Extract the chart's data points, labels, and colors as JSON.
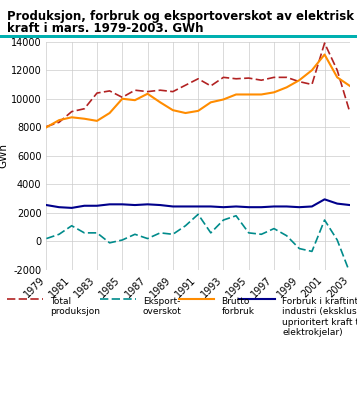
{
  "title_line1": "Produksjon, forbruk og eksportoverskot av elektrisk",
  "title_line2": "kraft i mars. 1979-2003. GWh",
  "ylabel": "GWh",
  "years": [
    1979,
    1980,
    1981,
    1982,
    1983,
    1984,
    1985,
    1986,
    1987,
    1988,
    1989,
    1990,
    1991,
    1992,
    1993,
    1994,
    1995,
    1996,
    1997,
    1998,
    1999,
    2000,
    2001,
    2002,
    2003
  ],
  "total_produksjon": [
    8050,
    8350,
    9100,
    9300,
    10400,
    10550,
    10100,
    10600,
    10500,
    10600,
    10500,
    10950,
    11400,
    10900,
    11500,
    11400,
    11450,
    11300,
    11500,
    11500,
    11200,
    11000,
    13900,
    12000,
    9050
  ],
  "eksport_overskot": [
    200,
    500,
    1100,
    600,
    600,
    -100,
    100,
    500,
    200,
    600,
    500,
    1100,
    1900,
    600,
    1500,
    1800,
    600,
    500,
    900,
    400,
    -500,
    -700,
    1500,
    100,
    -2200
  ],
  "brutto_forbruk": [
    8000,
    8500,
    8700,
    8600,
    8450,
    9000,
    10000,
    9900,
    10350,
    9750,
    9200,
    9000,
    9150,
    9750,
    9950,
    10300,
    10300,
    10300,
    10450,
    10800,
    11300,
    12000,
    13100,
    11500,
    10900
  ],
  "kraftintensiv": [
    2550,
    2400,
    2350,
    2500,
    2500,
    2600,
    2600,
    2550,
    2600,
    2550,
    2450,
    2450,
    2450,
    2450,
    2400,
    2450,
    2400,
    2400,
    2450,
    2450,
    2400,
    2450,
    2950,
    2650,
    2550
  ],
  "color_produksjon": "#b22222",
  "color_eksport": "#008b8b",
  "color_brutto": "#ff8c00",
  "color_kraftintensiv": "#00008b",
  "ylim": [
    -2000,
    14000
  ],
  "yticks": [
    -2000,
    0,
    2000,
    4000,
    6000,
    8000,
    10000,
    12000,
    14000
  ],
  "xticks": [
    1979,
    1981,
    1983,
    1985,
    1987,
    1989,
    1991,
    1993,
    1995,
    1997,
    1999,
    2001,
    2003
  ]
}
